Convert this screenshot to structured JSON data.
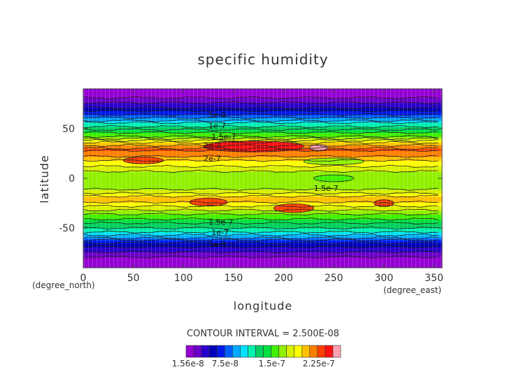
{
  "chart_data": {
    "type": "heatmap",
    "title": "specific humidity",
    "xlabel": "longitude",
    "ylabel": "latitude",
    "x_unit": "(degree_east)",
    "y_unit": "(degree_north)",
    "xlim": [
      0,
      358
    ],
    "ylim": [
      -90,
      90
    ],
    "x_ticks": [
      0,
      50,
      100,
      150,
      200,
      250,
      300,
      350
    ],
    "y_ticks": [
      -50,
      0,
      50
    ],
    "contour_interval_text": "CONTOUR INTERVAL = 2.500E-08",
    "contour_labels": [
      {
        "text": "5e-8",
        "lon": 125,
        "lat": 64
      },
      {
        "text": "1e-7",
        "lon": 125,
        "lat": 53
      },
      {
        "text": "1.5e-7",
        "lon": 128,
        "lat": 42
      },
      {
        "text": "2e-7",
        "lon": 120,
        "lat": 33
      },
      {
        "text": "2e-7",
        "lon": 120,
        "lat": 20
      },
      {
        "text": "1.5e-7",
        "lon": 230,
        "lat": -10
      },
      {
        "text": "1.5e-7",
        "lon": 125,
        "lat": -44
      },
      {
        "text": "1e-7",
        "lon": 128,
        "lat": -54
      },
      {
        "text": "5e-8",
        "lon": 125,
        "lat": -66
      }
    ],
    "colorbar": {
      "min": 1.25e-08,
      "max": 2.6e-07,
      "levels": 20,
      "tick_labels": [
        {
          "text": "1.56e-8",
          "value": 1.56e-08
        },
        {
          "text": "7.5e-8",
          "value": 7.5e-08
        },
        {
          "text": "1.5e-7",
          "value": 1.5e-07
        },
        {
          "text": "2.25e-7",
          "value": 2.25e-07
        }
      ],
      "colors": [
        "#9400d3",
        "#6a00c8",
        "#2a00cc",
        "#0000b8",
        "#0018e8",
        "#0060ff",
        "#00a8ff",
        "#00e0ff",
        "#00f0b0",
        "#00d060",
        "#00e040",
        "#40f000",
        "#90f000",
        "#d8f000",
        "#ffff00",
        "#ffc000",
        "#ff8000",
        "#ff4000",
        "#ff1010",
        "#ffa0b0"
      ]
    },
    "latitude_profile": [
      {
        "lat": -90,
        "value": 1.4e-08
      },
      {
        "lat": -80,
        "value": 2.3e-08
      },
      {
        "lat": -72,
        "value": 4.2e-08
      },
      {
        "lat": -65,
        "value": 6.2e-08
      },
      {
        "lat": -58,
        "value": 9.5e-08
      },
      {
        "lat": -50,
        "value": 1.25e-07
      },
      {
        "lat": -42,
        "value": 1.45e-07
      },
      {
        "lat": -34,
        "value": 1.65e-07
      },
      {
        "lat": -26,
        "value": 1.95e-07
      },
      {
        "lat": -20,
        "value": 2.05e-07
      },
      {
        "lat": -14,
        "value": 1.8e-07
      },
      {
        "lat": -8,
        "value": 1.68e-07
      },
      {
        "lat": 0,
        "value": 1.62e-07
      },
      {
        "lat": 6,
        "value": 1.7e-07
      },
      {
        "lat": 12,
        "value": 1.85e-07
      },
      {
        "lat": 18,
        "value": 1.98e-07
      },
      {
        "lat": 24,
        "value": 2.18e-07
      },
      {
        "lat": 30,
        "value": 2.25e-07
      },
      {
        "lat": 36,
        "value": 1.98e-07
      },
      {
        "lat": 42,
        "value": 1.62e-07
      },
      {
        "lat": 48,
        "value": 1.4e-07
      },
      {
        "lat": 54,
        "value": 1.18e-07
      },
      {
        "lat": 60,
        "value": 9.2e-08
      },
      {
        "lat": 66,
        "value": 6.8e-08
      },
      {
        "lat": 72,
        "value": 4.6e-08
      },
      {
        "lat": 80,
        "value": 2.6e-08
      },
      {
        "lat": 86,
        "value": 1.6e-08
      },
      {
        "lat": 90,
        "value": 1.3e-08
      }
    ],
    "anomalies": [
      {
        "lon": 170,
        "lat": 32,
        "value": 2.42e-07,
        "width": 100,
        "height": 8
      },
      {
        "lon": 235,
        "lat": 31,
        "value": 2.6e-07,
        "width": 18,
        "height": 3
      },
      {
        "lon": 125,
        "lat": -24,
        "value": 2.3e-07,
        "width": 38,
        "height": 5
      },
      {
        "lon": 210,
        "lat": -30,
        "value": 2.3e-07,
        "width": 40,
        "height": 6
      },
      {
        "lon": 300,
        "lat": -25,
        "value": 2.3e-07,
        "width": 20,
        "height": 4
      },
      {
        "lon": 60,
        "lat": 18,
        "value": 2.25e-07,
        "width": 40,
        "height": 4
      },
      {
        "lon": 250,
        "lat": 17,
        "value": 1.7e-07,
        "width": 60,
        "height": 4
      },
      {
        "lon": 250,
        "lat": 0,
        "value": 1.5e-07,
        "width": 40,
        "height": 4
      }
    ]
  }
}
